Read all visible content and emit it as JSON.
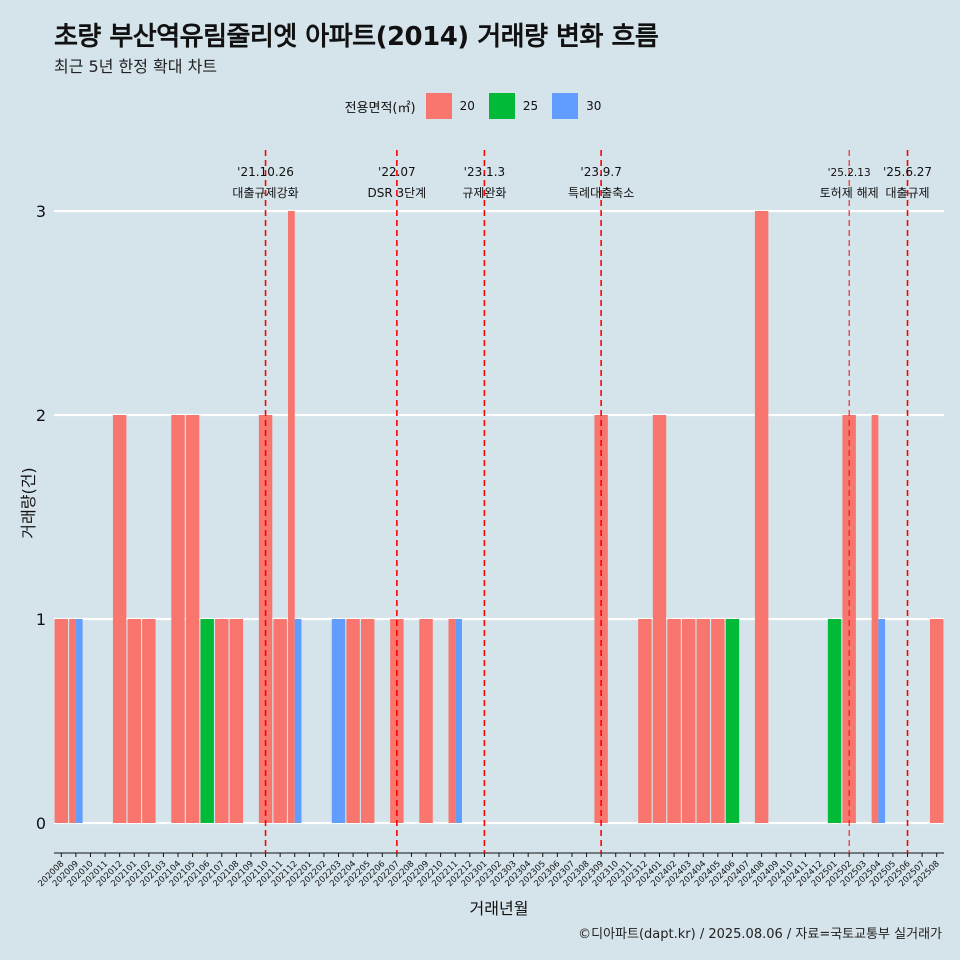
{
  "title": "초량 부산역유림줄리엣 아파트(2014) 거래량 변화 흐름",
  "subtitle": "최근 5년 한정 확대 차트",
  "caption": "©디아파트(dapt.kr) / 2025.08.06 / 자료=국토교통부 실거래가",
  "legend": {
    "title": "전용면적(㎡)",
    "items": [
      {
        "label": "20",
        "color": "#F8766D"
      },
      {
        "label": "25",
        "color": "#00BA38"
      },
      {
        "label": "30",
        "color": "#619CFF"
      }
    ]
  },
  "chart_data": {
    "type": "bar",
    "xlabel": "거래년월",
    "ylabel": "거래량(건)",
    "ylim": [
      0,
      3
    ],
    "yticks": [
      0,
      1,
      2,
      3
    ],
    "grid": true,
    "legend_position": "top",
    "categories": [
      "202008",
      "202009",
      "202010",
      "202011",
      "202012",
      "202101",
      "202102",
      "202103",
      "202104",
      "202105",
      "202106",
      "202107",
      "202108",
      "202109",
      "202110",
      "202111",
      "202112",
      "202201",
      "202202",
      "202203",
      "202204",
      "202205",
      "202206",
      "202207",
      "202208",
      "202209",
      "202210",
      "202211",
      "202212",
      "202301",
      "202302",
      "202303",
      "202304",
      "202305",
      "202306",
      "202307",
      "202308",
      "202309",
      "202310",
      "202311",
      "202312",
      "202401",
      "202402",
      "202403",
      "202404",
      "202405",
      "202406",
      "202407",
      "202408",
      "202409",
      "202410",
      "202411",
      "202412",
      "202501",
      "202502",
      "202503",
      "202504",
      "202505",
      "202506",
      "202507",
      "202508"
    ],
    "series": [
      {
        "name": "20",
        "color": "#F8766D",
        "values": [
          1,
          1,
          0,
          0,
          2,
          1,
          1,
          0,
          2,
          2,
          0,
          1,
          1,
          0,
          2,
          1,
          3,
          0,
          0,
          0,
          1,
          1,
          0,
          1,
          0,
          1,
          0,
          1,
          0,
          0,
          0,
          0,
          0,
          0,
          0,
          0,
          0,
          2,
          0,
          0,
          1,
          2,
          1,
          1,
          1,
          1,
          0,
          0,
          3,
          0,
          0,
          0,
          0,
          0,
          2,
          0,
          2,
          0,
          0,
          0,
          1
        ]
      },
      {
        "name": "25",
        "color": "#00BA38",
        "values": [
          0,
          0,
          0,
          0,
          0,
          0,
          0,
          0,
          0,
          0,
          1,
          0,
          0,
          0,
          0,
          0,
          0,
          0,
          0,
          0,
          0,
          0,
          0,
          0,
          0,
          0,
          0,
          0,
          0,
          0,
          0,
          0,
          0,
          0,
          0,
          0,
          0,
          0,
          0,
          0,
          0,
          0,
          0,
          0,
          0,
          0,
          1,
          0,
          0,
          0,
          0,
          0,
          0,
          1,
          0,
          0,
          0,
          0,
          0,
          0,
          0
        ]
      },
      {
        "name": "30",
        "color": "#619CFF",
        "values": [
          0,
          1,
          0,
          0,
          0,
          0,
          0,
          0,
          0,
          0,
          0,
          0,
          0,
          0,
          0,
          0,
          1,
          0,
          0,
          1,
          0,
          0,
          0,
          0,
          0,
          0,
          0,
          1,
          0,
          0,
          0,
          0,
          0,
          0,
          0,
          0,
          0,
          0,
          0,
          0,
          0,
          0,
          0,
          0,
          0,
          0,
          0,
          0,
          0,
          0,
          0,
          0,
          0,
          0,
          0,
          0,
          1,
          0,
          0,
          0,
          0
        ]
      }
    ],
    "annotations": [
      {
        "date": "'21.10.26",
        "text": "대출규제강화",
        "x": "202110"
      },
      {
        "date": "'22.07",
        "text": "DSR 3단계",
        "x": "202207"
      },
      {
        "date": "'23.1.3",
        "text": "규제완화",
        "x": "202301"
      },
      {
        "date": "'23.9.7",
        "text": "특례대출축소",
        "x": "202309"
      },
      {
        "date": "'25.2.13",
        "text": "토허제 해제",
        "x": "202502"
      },
      {
        "date": "'25.6.27",
        "text": "대출규제",
        "x": "202506"
      }
    ]
  }
}
